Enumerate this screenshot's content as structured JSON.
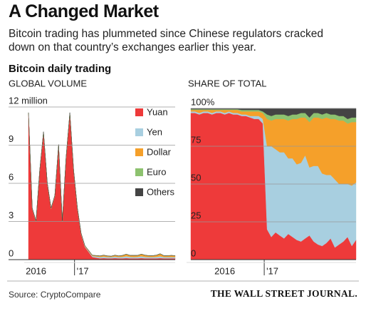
{
  "header": {
    "title": "A Changed Market",
    "subtitle": "Bitcoin trading has plummeted since Chinese regulators cracked down on that country’s exchanges earlier this year.",
    "section": "Bitcoin daily trading"
  },
  "footer": {
    "source": "Source: CryptoCompare",
    "publisher": "THE WALL STREET JOURNAL."
  },
  "chart_data": [
    {
      "type": "stacked-area",
      "title": "GLOBAL VOLUME",
      "legend": "upper right",
      "grid": true,
      "ylim": [
        0,
        12
      ],
      "yticks": [
        0,
        3,
        6,
        9,
        {
          "value": 12,
          "label": "12 million"
        }
      ],
      "categories": [
        null,
        null,
        "2016",
        null,
        null,
        null,
        null,
        null,
        null,
        null,
        null,
        null,
        null,
        "'17",
        null,
        null,
        null,
        null,
        null,
        null,
        null,
        null,
        null,
        null,
        null,
        null,
        null,
        null,
        null,
        null,
        null,
        null,
        null,
        null,
        null,
        null,
        null,
        null,
        null,
        null
      ],
      "series": [
        {
          "name": "Yuan",
          "color": "#ee3a3a",
          "values": [
            11.5,
            4,
            3,
            7,
            10,
            6,
            4,
            5,
            9,
            3,
            8,
            11.5,
            7,
            4,
            2,
            1,
            0.6,
            0.2,
            0.15,
            0.1,
            0.12,
            0.1,
            0.1,
            0.12,
            0.1,
            0.1,
            0.12,
            0.1,
            0.1,
            0.1,
            0.12,
            0.1,
            0.1,
            0.1,
            0.1,
            0.12,
            0.1,
            0.1,
            0.1,
            0.1
          ]
        },
        {
          "name": "Yen",
          "color": "#a8cfe0",
          "values": [
            0.02,
            0.02,
            0.02,
            0.02,
            0.02,
            0.02,
            0.02,
            0.02,
            0.02,
            0.02,
            0.02,
            0.02,
            0.02,
            0.03,
            0.04,
            0.05,
            0.06,
            0.08,
            0.1,
            0.1,
            0.12,
            0.1,
            0.1,
            0.12,
            0.1,
            0.12,
            0.15,
            0.12,
            0.1,
            0.12,
            0.15,
            0.12,
            0.1,
            0.1,
            0.12,
            0.15,
            0.1,
            0.1,
            0.1,
            0.1
          ]
        },
        {
          "name": "Dollar",
          "color": "#f5a02a",
          "values": [
            0.02,
            0.02,
            0.02,
            0.02,
            0.02,
            0.02,
            0.02,
            0.02,
            0.02,
            0.02,
            0.02,
            0.02,
            0.02,
            0.03,
            0.03,
            0.04,
            0.05,
            0.05,
            0.06,
            0.08,
            0.1,
            0.08,
            0.06,
            0.1,
            0.08,
            0.1,
            0.15,
            0.1,
            0.12,
            0.1,
            0.15,
            0.12,
            0.1,
            0.1,
            0.12,
            0.18,
            0.1,
            0.1,
            0.12,
            0.1
          ]
        },
        {
          "name": "Euro",
          "color": "#8dc26f",
          "values": [
            0.01,
            0.01,
            0.01,
            0.01,
            0.01,
            0.01,
            0.01,
            0.01,
            0.01,
            0.01,
            0.01,
            0.01,
            0.01,
            0.01,
            0.01,
            0.01,
            0.01,
            0.01,
            0.01,
            0.01,
            0.01,
            0.01,
            0.01,
            0.01,
            0.01,
            0.01,
            0.01,
            0.01,
            0.01,
            0.01,
            0.01,
            0.01,
            0.01,
            0.01,
            0.01,
            0.01,
            0.01,
            0.01,
            0.01,
            0.01
          ]
        },
        {
          "name": "Others",
          "color": "#444444",
          "values": [
            0.01,
            0.01,
            0.01,
            0.01,
            0.01,
            0.01,
            0.01,
            0.01,
            0.01,
            0.01,
            0.01,
            0.01,
            0.01,
            0.01,
            0.01,
            0.01,
            0.01,
            0.01,
            0.01,
            0.01,
            0.01,
            0.01,
            0.01,
            0.01,
            0.01,
            0.01,
            0.01,
            0.01,
            0.01,
            0.01,
            0.01,
            0.01,
            0.01,
            0.01,
            0.01,
            0.01,
            0.01,
            0.01,
            0.01,
            0.01
          ]
        }
      ]
    },
    {
      "type": "stacked-area",
      "title": "SHARE OF TOTAL",
      "grid": true,
      "ylim": [
        0,
        100
      ],
      "yticks": [
        0,
        25,
        50,
        75,
        {
          "value": 100,
          "label": "100%"
        }
      ],
      "categories": [
        null,
        null,
        null,
        null,
        null,
        null,
        null,
        null,
        "2016",
        null,
        null,
        null,
        null,
        null,
        null,
        null,
        null,
        null,
        "'17",
        null,
        null,
        null,
        null,
        null,
        null,
        null,
        null,
        null,
        null,
        null,
        null,
        null,
        null,
        null,
        null,
        null,
        null,
        null,
        null,
        null
      ],
      "series": [
        {
          "name": "Yuan",
          "color": "#ee3a3a",
          "values": [
            97,
            97,
            96,
            97,
            97,
            96,
            97,
            97,
            96,
            97,
            96,
            96,
            95,
            95,
            94,
            93,
            93,
            90,
            20,
            15,
            18,
            16,
            14,
            17,
            15,
            13,
            12,
            14,
            16,
            12,
            10,
            9,
            11,
            14,
            8,
            10,
            12,
            15,
            9,
            13
          ]
        },
        {
          "name": "Yen",
          "color": "#a8cfe0",
          "values": [
            1,
            1,
            1,
            1,
            1,
            1,
            1,
            1,
            1,
            1,
            1,
            1,
            1,
            1,
            1,
            2,
            2,
            3,
            55,
            60,
            55,
            55,
            57,
            50,
            52,
            50,
            52,
            55,
            45,
            50,
            52,
            48,
            45,
            42,
            45,
            40,
            38,
            35,
            40,
            38
          ]
        },
        {
          "name": "Dollar",
          "color": "#f5a02a",
          "values": [
            1,
            1,
            2,
            1,
            1,
            2,
            1,
            1,
            2,
            1,
            2,
            2,
            2,
            2,
            3,
            3,
            3,
            4,
            18,
            17,
            20,
            22,
            22,
            25,
            26,
            30,
            30,
            25,
            30,
            32,
            32,
            36,
            38,
            37,
            40,
            42,
            42,
            40,
            42,
            40
          ]
        },
        {
          "name": "Euro",
          "color": "#8dc26f",
          "values": [
            0.5,
            0.5,
            0.5,
            0.5,
            0.5,
            0.5,
            0.5,
            0.5,
            0.5,
            0.5,
            0.5,
            0.5,
            1,
            1,
            1,
            1,
            1,
            1,
            3,
            3,
            3,
            3,
            3,
            3,
            3,
            3,
            3,
            3,
            3,
            3,
            3,
            3,
            3,
            3,
            3,
            3,
            3,
            3,
            3,
            3
          ]
        },
        {
          "name": "Others",
          "color": "#444444",
          "values": [
            0.5,
            0.5,
            0.5,
            0.5,
            0.5,
            0.5,
            0.5,
            0.5,
            0.5,
            0.5,
            0.5,
            0.5,
            1,
            1,
            1,
            1,
            1,
            2,
            4,
            5,
            4,
            4,
            4,
            5,
            4,
            4,
            3,
            3,
            6,
            3,
            3,
            4,
            3,
            4,
            4,
            5,
            5,
            7,
            6,
            6
          ]
        }
      ]
    }
  ]
}
